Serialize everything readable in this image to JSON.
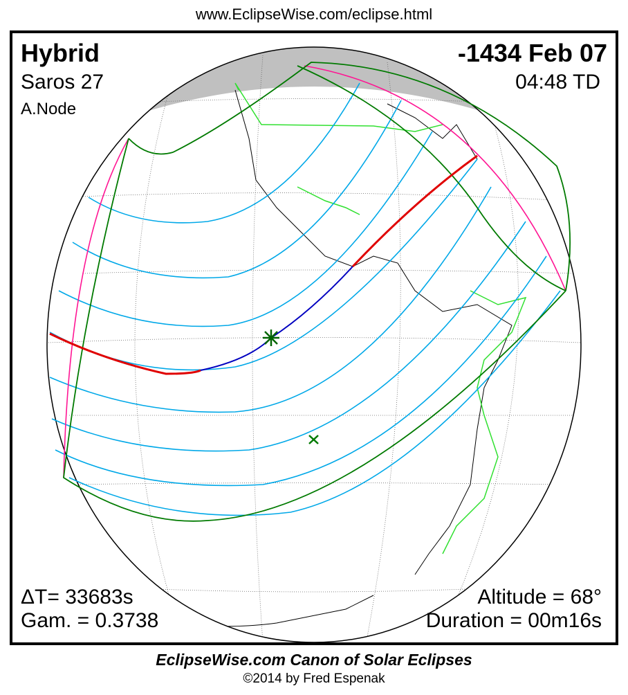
{
  "header_url": "www.EclipseWise.com/eclipse.html",
  "eclipse": {
    "type": "Hybrid",
    "saros": "Saros  27",
    "node": "A.Node",
    "date": "-1434 Feb 07",
    "time": "04:48 TD"
  },
  "stats": {
    "delta_t": "ΔT=  33683s",
    "gamma": "Gam. = 0.3738",
    "altitude": "Altitude = 68°",
    "duration": "Duration = 00m16s"
  },
  "footer": {
    "title": "EclipseWise.com Canon of Solar Eclipses",
    "copyright": "©2014 by Fred Espenak"
  },
  "colors": {
    "penumbral_limits": "#007a00",
    "central_total": "#e00000",
    "central_annular": "#0000c0",
    "time_lines": "#00a8e8",
    "rise_set": "#ff1493",
    "borders": "#30e030",
    "night": "#c0c0c0"
  }
}
